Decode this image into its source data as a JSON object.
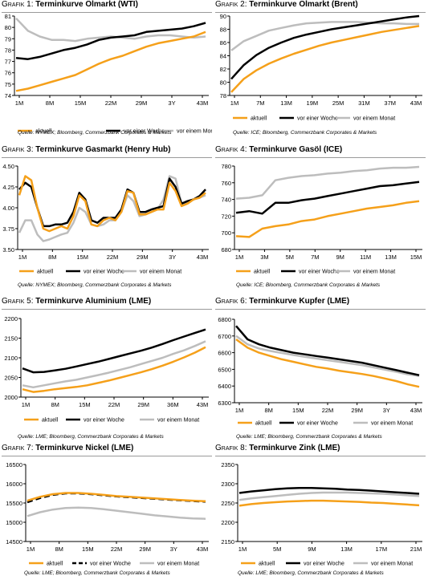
{
  "colors": {
    "aktuell": "#f5a01a",
    "woche": "#000000",
    "monat": "#bdbdbd"
  },
  "charts": [
    {
      "prefix": "Grafik 1:",
      "title": "Terminkurve Ölmarkt (WTI)",
      "source": "Quelle: NYMEX; Bloomberg, Commerzbank Corporates & Markets",
      "chart_data": {
        "type": "line",
        "ylim": [
          74,
          81
        ],
        "yticks": [
          74,
          75,
          76,
          77,
          78,
          79,
          80,
          81
        ],
        "xticks": [
          "1M",
          "8M",
          "15M",
          "22M",
          "29M",
          "3Y",
          "43M"
        ],
        "series": [
          {
            "name": "aktuell",
            "style": "aktuell",
            "values": [
              74.4,
              74.6,
              74.9,
              75.2,
              75.5,
              75.8,
              76.3,
              76.8,
              77.2,
              77.5,
              77.9,
              78.3,
              78.6,
              78.8,
              79.0,
              79.2,
              79.6
            ]
          },
          {
            "name": "vor einer Woche",
            "style": "woche",
            "values": [
              77.3,
              77.2,
              77.4,
              77.7,
              78.0,
              78.2,
              78.5,
              78.9,
              79.1,
              79.2,
              79.3,
              79.6,
              79.7,
              79.8,
              79.9,
              80.1,
              80.4
            ]
          },
          {
            "name": "vor einem Monat",
            "style": "monat",
            "values": [
              80.8,
              79.7,
              79.2,
              78.9,
              78.9,
              78.8,
              79.0,
              79.1,
              79.2,
              79.1,
              79.0,
              79.2,
              79.3,
              79.3,
              79.2,
              79.1,
              79.2
            ]
          }
        ],
        "legend": [
          {
            "label": "aktuell",
            "style": "aktuell"
          },
          {
            "label": "vor einer Woche",
            "style": "woche"
          },
          {
            "label": "vor einem Monat",
            "style": "monat"
          }
        ]
      }
    },
    {
      "prefix": "Grafik 2:",
      "title": "Terminkurve Ölmarkt (Brent)",
      "source": "Quelle: ICE; Bloomberg, Commerzbank Corporates & Markets",
      "chart_data": {
        "type": "line",
        "ylim": [
          78,
          90
        ],
        "yticks": [
          78,
          80,
          82,
          84,
          86,
          88,
          90
        ],
        "xticks": [
          "1M",
          "7M",
          "13M",
          "19M",
          "25M",
          "31M",
          "37M",
          "43M"
        ],
        "series": [
          {
            "name": "aktuell",
            "style": "aktuell",
            "values": [
              78.5,
              80.5,
              81.8,
              82.8,
              83.6,
              84.3,
              84.9,
              85.5,
              86.0,
              86.4,
              86.8,
              87.2,
              87.6,
              87.9,
              88.2,
              88.5
            ]
          },
          {
            "name": "vor einer Woche",
            "style": "woche",
            "values": [
              80.5,
              82.6,
              84.1,
              85.2,
              86.0,
              86.7,
              87.2,
              87.6,
              88.0,
              88.3,
              88.6,
              88.9,
              89.2,
              89.5,
              89.8,
              90.0
            ]
          },
          {
            "name": "vor einem Monat",
            "style": "monat",
            "values": [
              84.8,
              86.2,
              87.0,
              87.8,
              88.2,
              88.6,
              88.9,
              89.0,
              89.1,
              89.1,
              89.1,
              89.0,
              88.9,
              88.9,
              88.8,
              88.8
            ]
          }
        ],
        "legend": [
          {
            "label": "aktuell",
            "style": "aktuell"
          },
          {
            "label": "vor einer Woche",
            "style": "woche"
          },
          {
            "label": "vor einem Monat",
            "style": "monat"
          }
        ]
      }
    },
    {
      "prefix": "Grafik 3:",
      "title": "Terminkurve Gasmarkt (Henry Hub)",
      "source": "Quelle: NYMEX; Bloomberg, Commerzbank Corporates & Markets",
      "chart_data": {
        "type": "line",
        "ylim": [
          3.5,
          4.5
        ],
        "yticks": [
          3.5,
          3.75,
          4.0,
          4.25,
          4.5
        ],
        "ytick_labels": [
          "3.50",
          "3.75",
          "4.00",
          "4.25",
          "4.50"
        ],
        "xticks": [
          "1M",
          "8M",
          "15M",
          "22M",
          "29M",
          "3Y",
          "43M"
        ],
        "series": [
          {
            "name": "aktuell",
            "style": "aktuell",
            "values": [
              4.15,
              4.38,
              4.33,
              4.0,
              3.75,
              3.72,
              3.75,
              3.78,
              3.75,
              3.9,
              4.15,
              4.08,
              3.8,
              3.78,
              3.85,
              3.88,
              3.85,
              3.95,
              4.2,
              4.18,
              3.92,
              3.92,
              3.95,
              3.98,
              3.98,
              4.3,
              4.2,
              4.02,
              4.05,
              4.1,
              4.12,
              4.18
            ]
          },
          {
            "name": "vor einer Woche",
            "style": "woche",
            "values": [
              4.22,
              4.3,
              4.25,
              4.0,
              3.78,
              3.78,
              3.8,
              3.8,
              3.82,
              3.95,
              4.18,
              4.1,
              3.85,
              3.82,
              3.88,
              3.88,
              3.88,
              3.98,
              4.22,
              4.18,
              3.95,
              3.95,
              3.98,
              4.0,
              4.02,
              4.35,
              4.25,
              4.05,
              4.08,
              4.1,
              4.14,
              4.22
            ]
          },
          {
            "name": "vor einem Monat",
            "style": "monat",
            "values": [
              3.7,
              3.85,
              3.85,
              3.68,
              3.6,
              3.62,
              3.65,
              3.68,
              3.7,
              3.82,
              4.0,
              3.95,
              3.8,
              3.78,
              3.8,
              3.85,
              3.85,
              3.95,
              4.15,
              4.08,
              3.9,
              3.92,
              3.95,
              3.98,
              4.1,
              4.38,
              4.35,
              4.05,
              4.05,
              4.1,
              4.12,
              4.15
            ]
          }
        ],
        "legend": [
          {
            "label": "aktuell",
            "style": "aktuell"
          },
          {
            "label": "vor einer Woche",
            "style": "woche"
          },
          {
            "label": "vor einem Monat",
            "style": "monat"
          }
        ]
      }
    },
    {
      "prefix": "Grafik 4:",
      "title": "Terminkurve Gasöl (ICE)",
      "source": "Quelle: ICE; Bloomberg, Commerzbank Corporates & Markets",
      "chart_data": {
        "type": "line",
        "ylim": [
          680,
          780
        ],
        "yticks": [
          680,
          700,
          720,
          740,
          760,
          780
        ],
        "xticks": [
          "1M",
          "3M",
          "5M",
          "7M",
          "9M",
          "11M",
          "13M",
          "15M"
        ],
        "series": [
          {
            "name": "aktuell",
            "style": "aktuell",
            "values": [
              696,
              695,
              705,
              708,
              710,
              714,
              716,
              720,
              723,
              726,
              729,
              731,
              733,
              736,
              738
            ]
          },
          {
            "name": "vor einer Woche",
            "style": "woche",
            "values": [
              724,
              726,
              723,
              736,
              736,
              739,
              741,
              744,
              747,
              750,
              753,
              756,
              757,
              759,
              761
            ]
          },
          {
            "name": "vor einem Monat",
            "style": "monat",
            "values": [
              741,
              742,
              745,
              763,
              766,
              768,
              769,
              771,
              772,
              774,
              775,
              777,
              778,
              778,
              779
            ]
          }
        ],
        "legend": [
          {
            "label": "aktuell",
            "style": "aktuell"
          },
          {
            "label": "vor einer Woche",
            "style": "woche"
          },
          {
            "label": "vor einem Monat",
            "style": "monat"
          }
        ]
      }
    },
    {
      "prefix": "Grafik 5:",
      "title": "Terminkurve Aluminium (LME)",
      "source": "Quelle: LME; Bloomberg, Commerzbank Corporates & Markets",
      "chart_data": {
        "type": "line",
        "ylim": [
          2000,
          2200
        ],
        "yticks": [
          2000,
          2050,
          2100,
          2150,
          2200
        ],
        "xticks": [
          "1M",
          "8M",
          "15M",
          "22M",
          "29M",
          "36M",
          "43M"
        ],
        "series": [
          {
            "name": "aktuell",
            "style": "aktuell",
            "values": [
              2020,
              2013,
              2016,
              2020,
              2023,
              2026,
              2030,
              2036,
              2042,
              2049,
              2056,
              2063,
              2071,
              2080,
              2090,
              2101,
              2113,
              2127
            ]
          },
          {
            "name": "vor einer Woche",
            "style": "woche",
            "values": [
              2073,
              2063,
              2064,
              2068,
              2072,
              2078,
              2084,
              2090,
              2097,
              2104,
              2111,
              2118,
              2126,
              2135,
              2145,
              2154,
              2163,
              2172
            ]
          },
          {
            "name": "vor einem Monat",
            "style": "monat",
            "values": [
              2030,
              2025,
              2030,
              2035,
              2040,
              2044,
              2050,
              2056,
              2062,
              2069,
              2076,
              2084,
              2092,
              2100,
              2110,
              2119,
              2130,
              2142
            ]
          }
        ],
        "legend": [
          {
            "label": "aktuell",
            "style": "aktuell"
          },
          {
            "label": "vor einer Woche",
            "style": "woche"
          },
          {
            "label": "vor einem Monat",
            "style": "monat"
          }
        ]
      }
    },
    {
      "prefix": "Grafik 6:",
      "title": "Terminkurve Kupfer (LME)",
      "source": "Quelle: LME; Bloomberg, Commerzbank Corporates & Markets",
      "chart_data": {
        "type": "line",
        "ylim": [
          6300,
          6800
        ],
        "yticks": [
          6300,
          6400,
          6500,
          6600,
          6700,
          6800
        ],
        "xticks": [
          "1M",
          "8M",
          "15M",
          "22M",
          "29M",
          "3Y",
          "43M"
        ],
        "series": [
          {
            "name": "aktuell",
            "style": "aktuell",
            "values": [
              6680,
              6630,
              6600,
              6580,
              6560,
              6545,
              6530,
              6515,
              6505,
              6492,
              6482,
              6472,
              6460,
              6445,
              6430,
              6410,
              6395
            ]
          },
          {
            "name": "vor einer Woche",
            "style": "woche",
            "values": [
              6760,
              6680,
              6650,
              6630,
              6615,
              6600,
              6590,
              6580,
              6570,
              6560,
              6550,
              6540,
              6525,
              6510,
              6495,
              6480,
              6465
            ]
          },
          {
            "name": "vor einem Monat",
            "style": "monat",
            "values": [
              6700,
              6650,
              6625,
              6610,
              6598,
              6586,
              6575,
              6565,
              6555,
              6545,
              6535,
              6525,
              6512,
              6498,
              6485,
              6470,
              6460
            ]
          }
        ],
        "legend": [
          {
            "label": "aktuell",
            "style": "aktuell"
          },
          {
            "label": "vor einer Woche",
            "style": "woche"
          },
          {
            "label": "vor einem Monat",
            "style": "monat"
          }
        ]
      }
    },
    {
      "prefix": "Grafik 7:",
      "title": "Terminkurve Nickel (LME)",
      "source": "Quelle: LME; Bloomberg, Commerzbank Corporates & Markets",
      "chart_data": {
        "type": "line",
        "ylim": [
          14500,
          16500
        ],
        "yticks": [
          14500,
          15000,
          15500,
          16000,
          16500
        ],
        "xticks": [
          "1M",
          "8M",
          "15M",
          "22M",
          "29M",
          "3Y",
          "43M"
        ],
        "series": [
          {
            "name": "aktuell",
            "style": "aktuell",
            "values": [
              15560,
              15660,
              15730,
              15760,
              15760,
              15740,
              15710,
              15680,
              15660,
              15640,
              15620,
              15600,
              15580,
              15560,
              15545
            ]
          },
          {
            "name": "vor einer Woche",
            "style": "woche-dash",
            "values": [
              15520,
              15630,
              15710,
              15750,
              15750,
              15730,
              15700,
              15670,
              15650,
              15630,
              15610,
              15590,
              15570,
              15550,
              15535
            ]
          },
          {
            "name": "vor einem Monat",
            "style": "monat",
            "values": [
              15160,
              15260,
              15330,
              15370,
              15380,
              15370,
              15340,
              15300,
              15260,
              15220,
              15180,
              15150,
              15120,
              15100,
              15090
            ]
          }
        ],
        "legend": [
          {
            "label": "aktuell",
            "style": "aktuell"
          },
          {
            "label": "vor einer Woche",
            "style": "woche-dash"
          },
          {
            "label": "vor einem Monat",
            "style": "monat"
          }
        ]
      }
    },
    {
      "prefix": "Grafik 8:",
      "title": "Terminkurve Zink (LME)",
      "source": "Quelle: LME; Bloomberg, Commerzbank Corporates & Markets",
      "chart_data": {
        "type": "line",
        "ylim": [
          2150,
          2350
        ],
        "yticks": [
          2150,
          2200,
          2250,
          2300,
          2350
        ],
        "xticks": [
          "1M",
          "5M",
          "9M",
          "13M",
          "17M",
          "21M"
        ],
        "series": [
          {
            "name": "aktuell",
            "style": "aktuell",
            "values": [
              2243,
              2247,
              2250,
              2252,
              2254,
              2255,
              2256,
              2256,
              2255,
              2254,
              2253,
              2251,
              2250,
              2248,
              2246,
              2244
            ]
          },
          {
            "name": "vor einer Woche",
            "style": "woche",
            "values": [
              2276,
              2280,
              2283,
              2286,
              2288,
              2289,
              2289,
              2288,
              2287,
              2285,
              2284,
              2282,
              2280,
              2278,
              2276,
              2274
            ]
          },
          {
            "name": "vor einem Monat",
            "style": "monat",
            "values": [
              2258,
              2262,
              2265,
              2268,
              2271,
              2274,
              2276,
              2277,
              2277,
              2277,
              2276,
              2275,
              2274,
              2272,
              2270,
              2268
            ]
          }
        ],
        "legend": [
          {
            "label": "aktuell",
            "style": "aktuell"
          },
          {
            "label": "vor einer Woche",
            "style": "woche"
          },
          {
            "label": "vor einem Monat",
            "style": "monat"
          }
        ]
      }
    }
  ]
}
